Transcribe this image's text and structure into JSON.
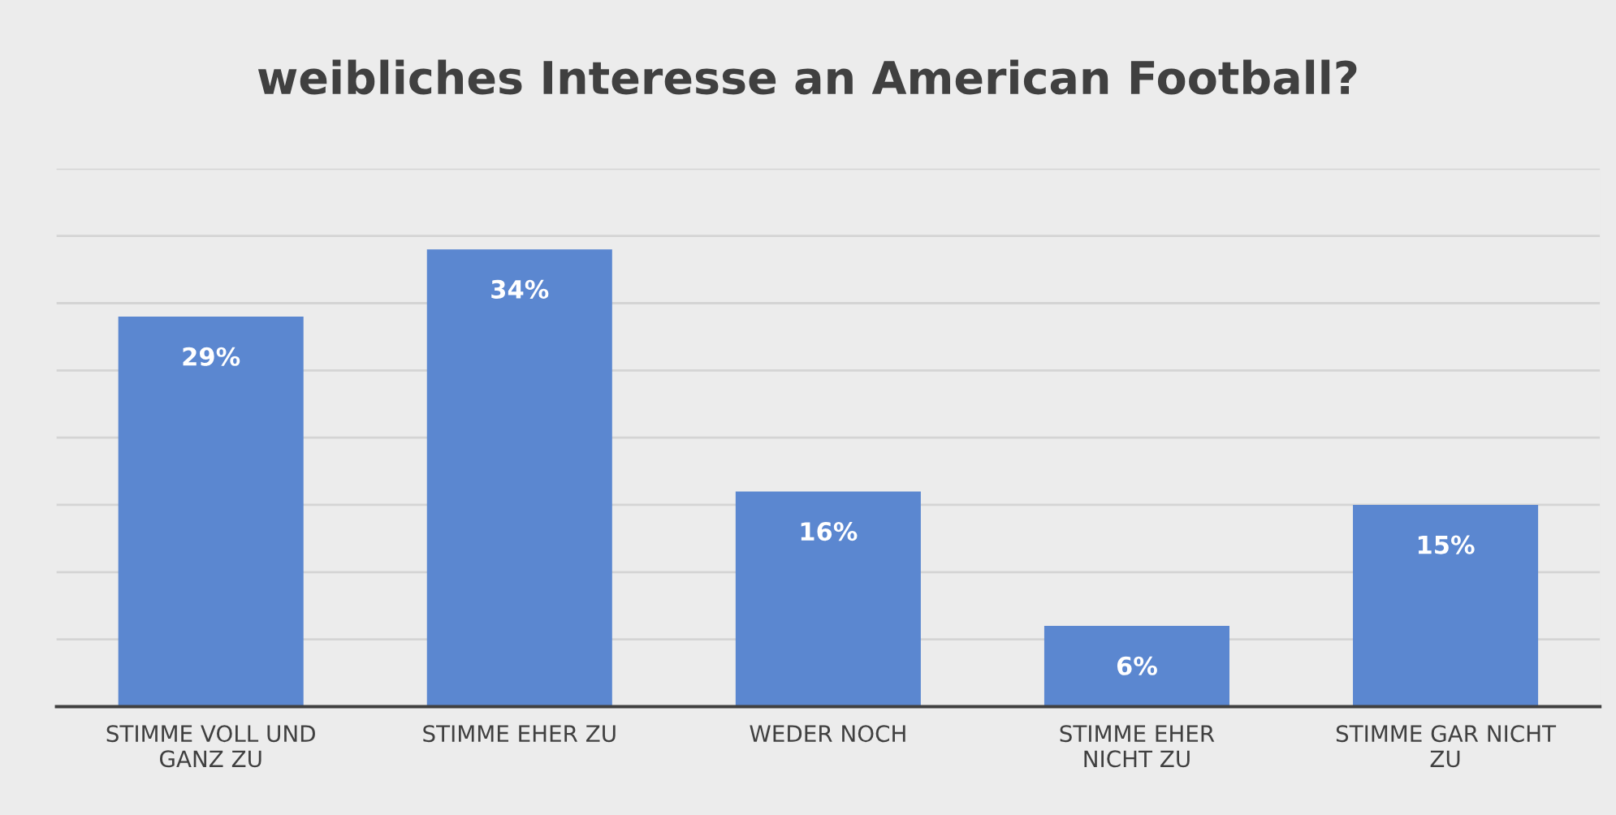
{
  "chart_data": {
    "type": "bar",
    "title": "weibliches Interesse an American Football?",
    "categories": [
      "STIMME VOLL UND GANZ ZU",
      "STIMME EHER ZU",
      "WEDER NOCH",
      "STIMME EHER NICHT ZU",
      "STIMME GAR NICHT ZU"
    ],
    "values": [
      29,
      34,
      16,
      6,
      15
    ],
    "value_labels": [
      "29%",
      "34%",
      "16%",
      "6%",
      "15%"
    ],
    "color": "#5b87d0",
    "ylim": [
      0,
      40
    ],
    "yticks": [
      {
        "value": 0,
        "label": null
      },
      {
        "value": 5,
        "label": null
      },
      {
        "value": 10,
        "label": null
      },
      {
        "value": 15,
        "label": null
      },
      {
        "value": 20,
        "label": null
      },
      {
        "value": 25,
        "label": null
      },
      {
        "value": 30,
        "label": null
      },
      {
        "value": 35,
        "label": null
      },
      {
        "value": 40,
        "label": null
      }
    ],
    "grid": "y",
    "tick_labels": "x"
  }
}
